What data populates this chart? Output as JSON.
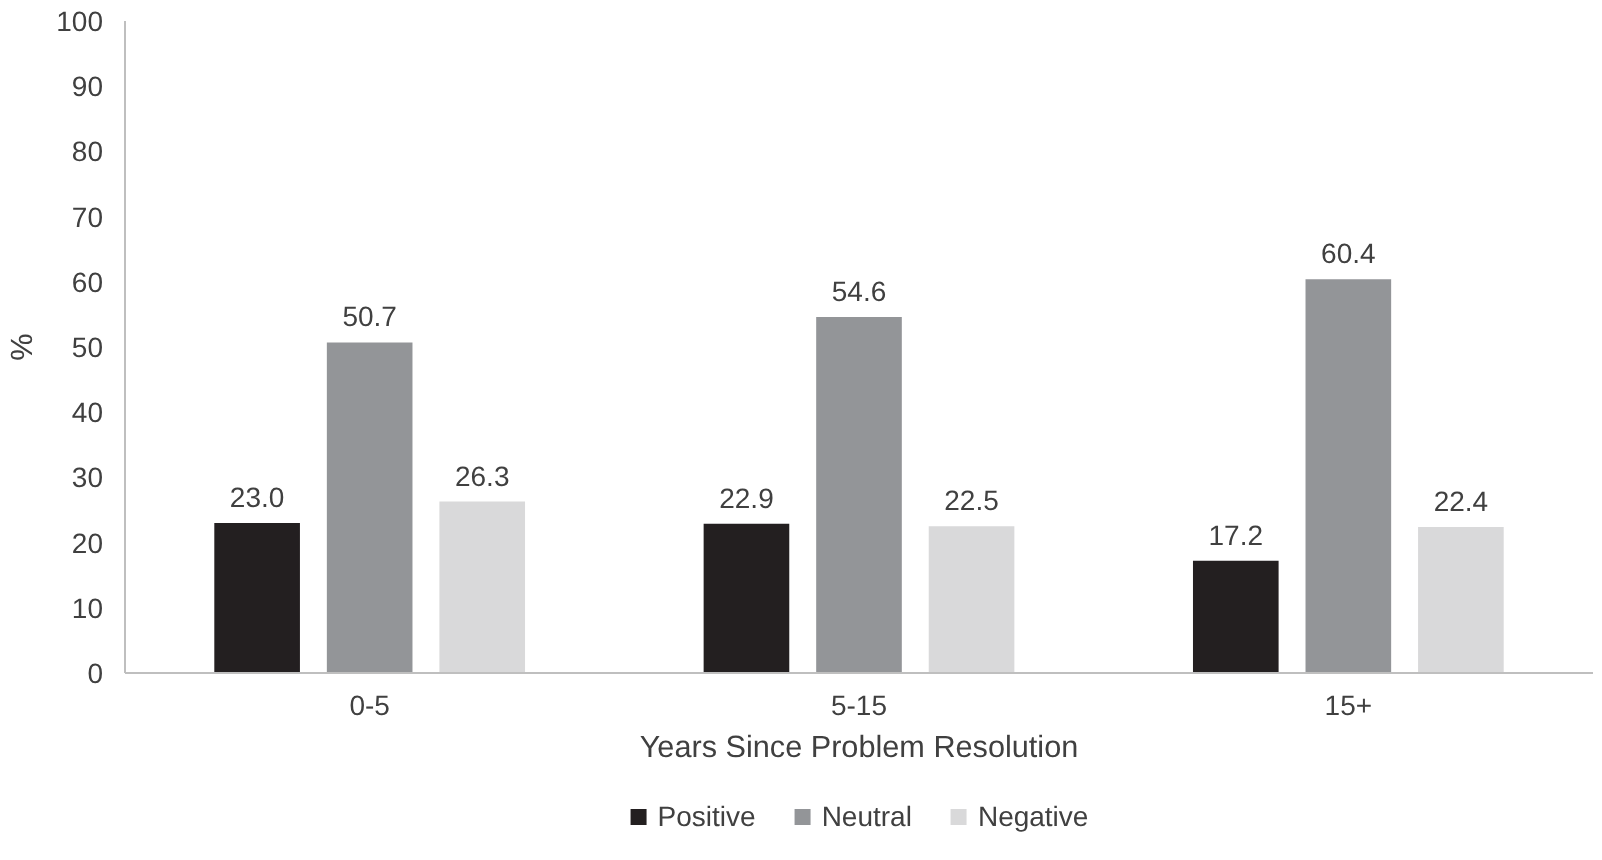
{
  "chart_data": {
    "type": "bar",
    "xlabel": "Years Since Problem Resolution",
    "ylabel": "%",
    "categories": [
      "0-5",
      "5-15",
      "15+"
    ],
    "series": [
      {
        "name": "Positive",
        "color": "#231f20",
        "values": [
          23.0,
          22.9,
          17.2
        ],
        "value_labels": [
          "23.0",
          "22.9",
          "17.2"
        ]
      },
      {
        "name": "Neutral",
        "color": "#939598",
        "values": [
          50.7,
          54.6,
          60.4
        ],
        "value_labels": [
          "50.7",
          "54.6",
          "60.4"
        ]
      },
      {
        "name": "Negative",
        "color": "#d9d9da",
        "values": [
          26.3,
          22.5,
          22.4
        ],
        "value_labels": [
          "26.3",
          "22.5",
          "22.4"
        ]
      }
    ],
    "ylim": [
      0,
      100
    ],
    "yticks": [
      0,
      10,
      20,
      30,
      40,
      50,
      60,
      70,
      80,
      90,
      100
    ],
    "grid": false,
    "legend": "bottom"
  }
}
